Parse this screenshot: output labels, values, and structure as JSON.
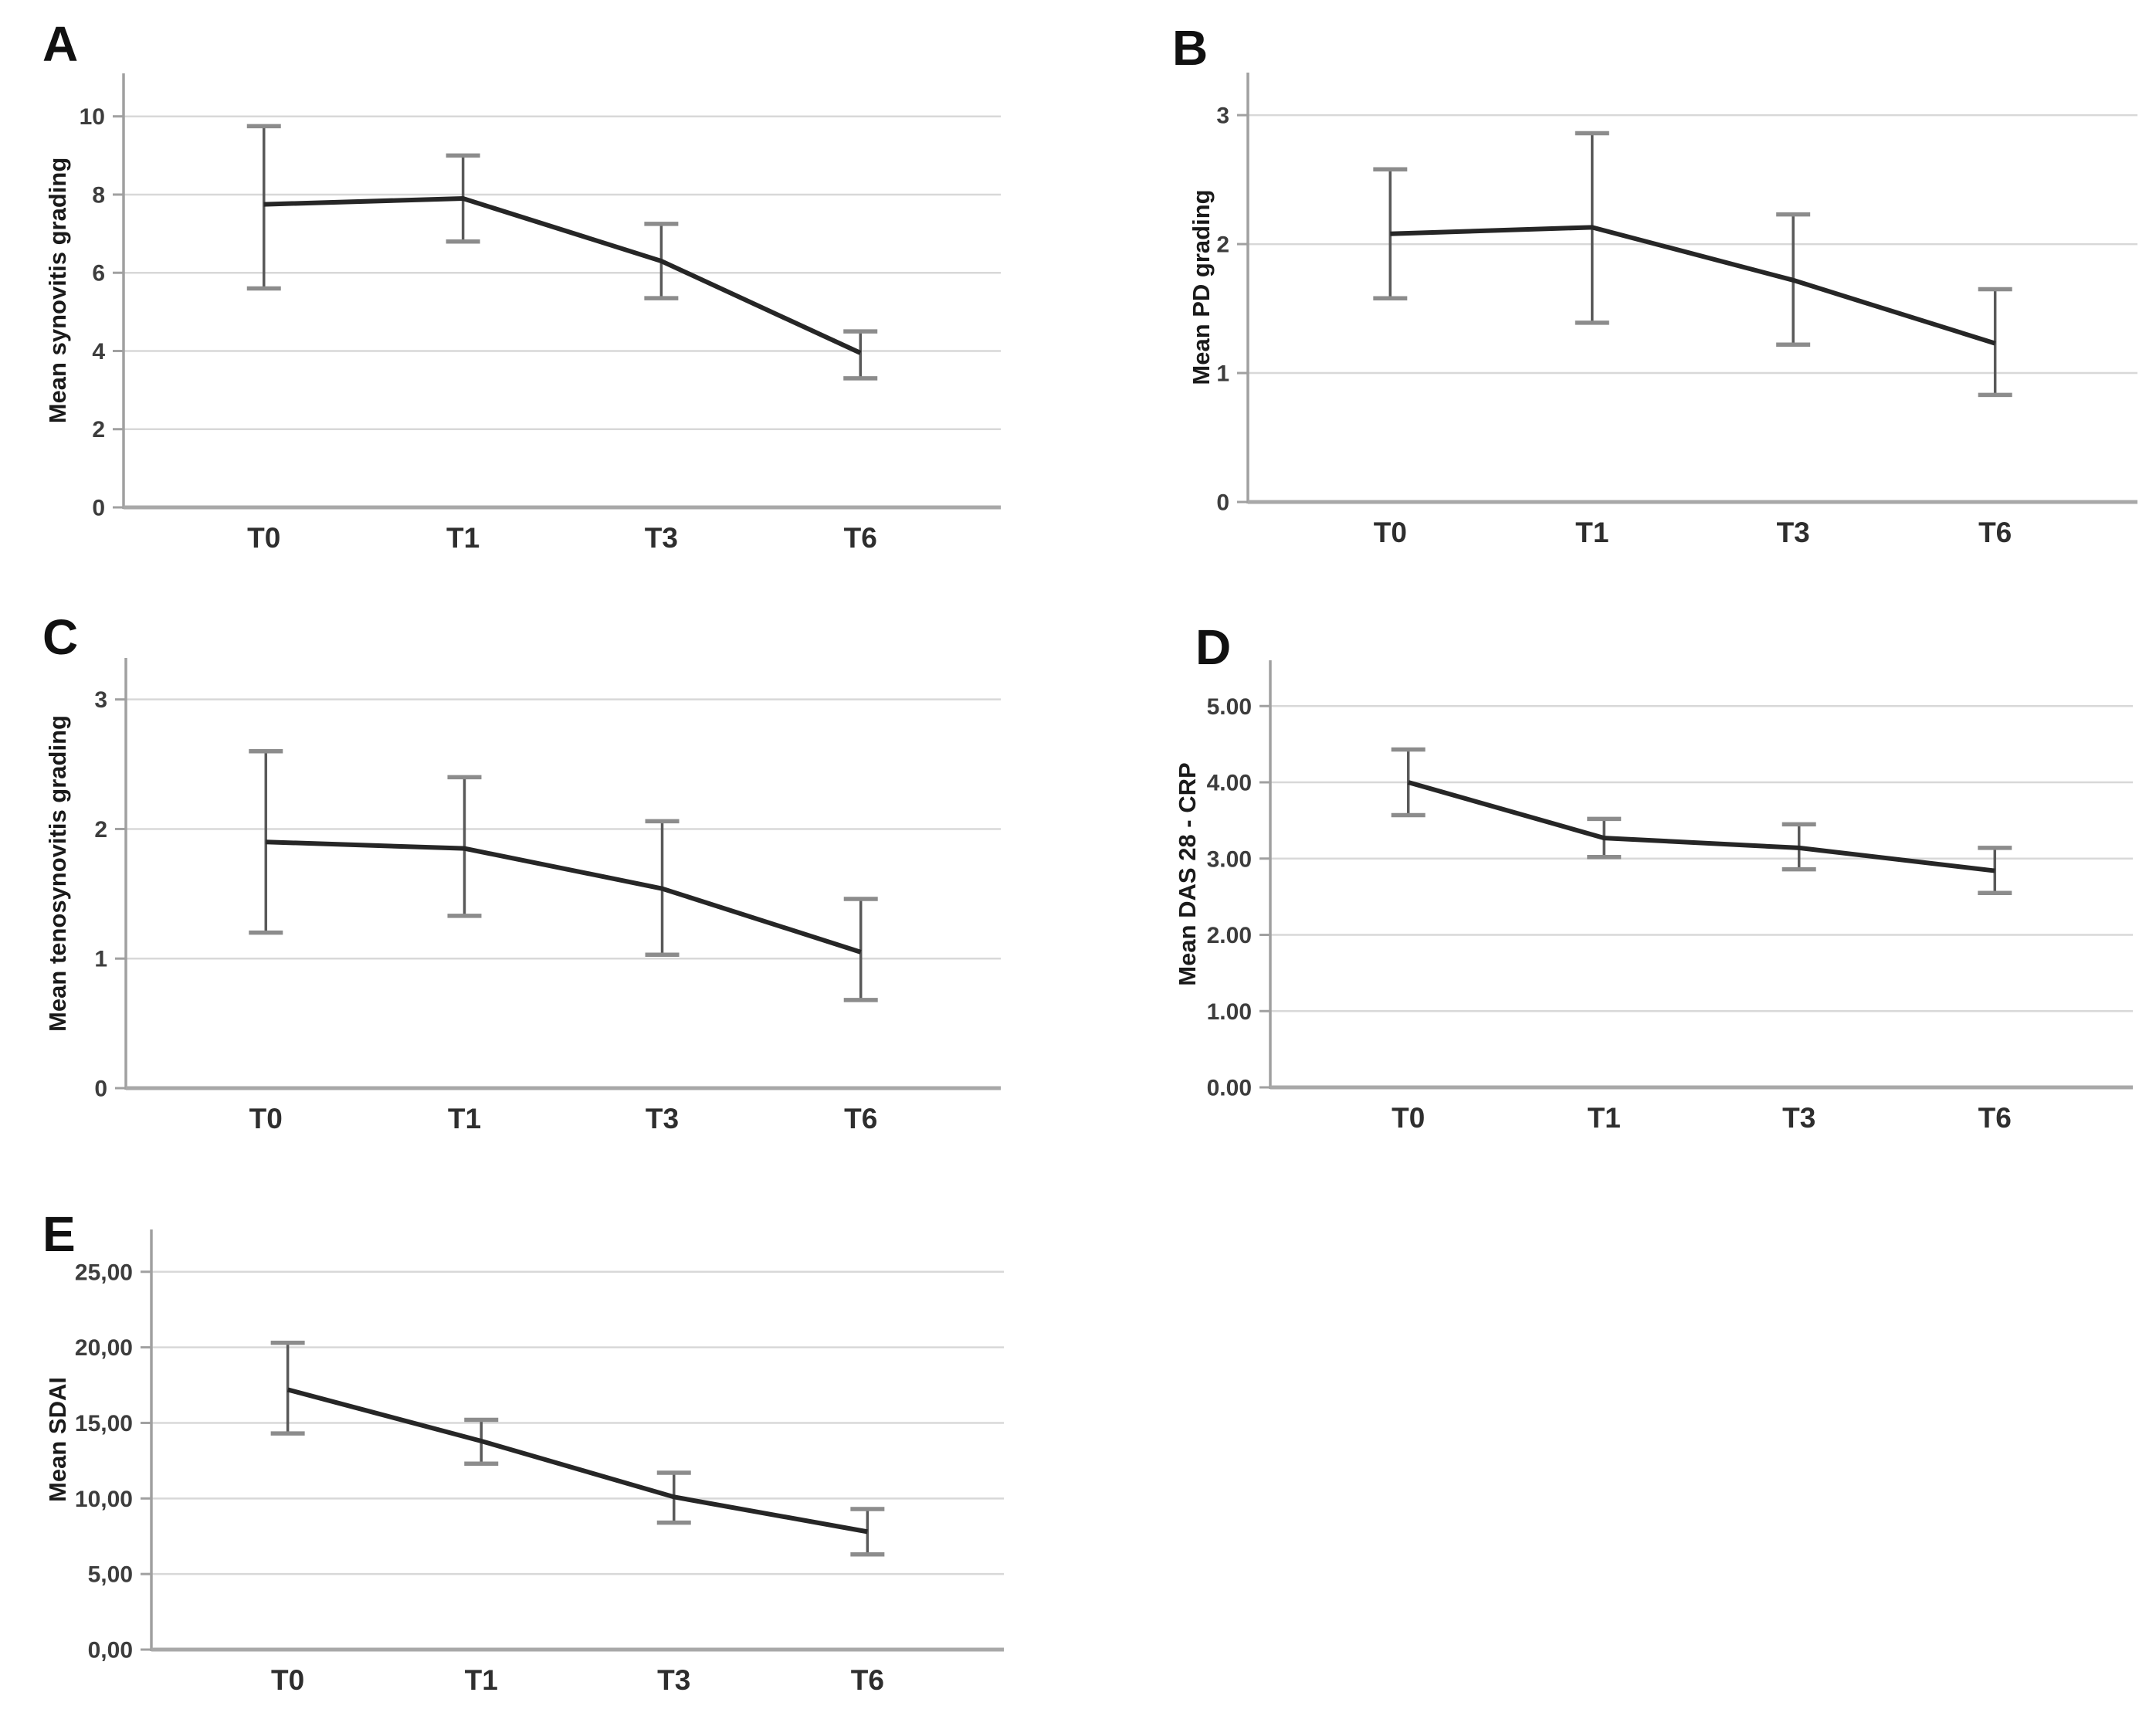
{
  "chart_data": [
    {
      "panel_label": "A",
      "type": "line",
      "title": "",
      "xlabel": "",
      "ylabel": "Mean synovitis grading",
      "categories": [
        "T0",
        "T1",
        "T3",
        "T6"
      ],
      "series": [
        {
          "name": "mean",
          "values": [
            7.75,
            7.9,
            6.3,
            3.95
          ]
        }
      ],
      "error_low": [
        5.6,
        6.8,
        5.35,
        3.3
      ],
      "error_high": [
        9.75,
        9.0,
        7.25,
        4.5
      ],
      "ylim": [
        0,
        11.1
      ],
      "ytick_values": [
        0,
        2,
        4,
        6,
        8,
        10
      ],
      "ytick_labels": [
        "0",
        "2",
        "4",
        "6",
        "8",
        "10"
      ],
      "grid": true,
      "legend": "none"
    },
    {
      "panel_label": "B",
      "type": "line",
      "title": "",
      "xlabel": "",
      "ylabel": "Mean PD grading",
      "categories": [
        "T0",
        "T1",
        "T3",
        "T6"
      ],
      "series": [
        {
          "name": "mean",
          "values": [
            2.08,
            2.13,
            1.72,
            1.23
          ]
        }
      ],
      "error_low": [
        1.58,
        1.39,
        1.22,
        0.83
      ],
      "error_high": [
        2.58,
        2.86,
        2.23,
        1.65
      ],
      "ylim": [
        0,
        3.33
      ],
      "ytick_values": [
        0,
        1,
        2,
        3
      ],
      "ytick_labels": [
        "0",
        "1",
        "2",
        "3"
      ],
      "grid": true,
      "legend": "none"
    },
    {
      "panel_label": "C",
      "type": "line",
      "title": "",
      "xlabel": "",
      "ylabel": "Mean tenosynovitis grading",
      "categories": [
        "T0",
        "T1",
        "T3",
        "T6"
      ],
      "series": [
        {
          "name": "mean",
          "values": [
            1.9,
            1.85,
            1.54,
            1.05
          ]
        }
      ],
      "error_low": [
        1.2,
        1.33,
        1.03,
        0.68
      ],
      "error_high": [
        2.6,
        2.4,
        2.06,
        1.46
      ],
      "ylim": [
        0,
        3.32
      ],
      "ytick_values": [
        0,
        1,
        2,
        3
      ],
      "ytick_labels": [
        "0",
        "1",
        "2",
        "3"
      ],
      "grid": true,
      "legend": "none"
    },
    {
      "panel_label": "D",
      "type": "line",
      "title": "",
      "xlabel": "",
      "ylabel": "Mean DAS 28 - CRP",
      "categories": [
        "T0",
        "T1",
        "T3",
        "T6"
      ],
      "series": [
        {
          "name": "mean",
          "values": [
            4.0,
            3.27,
            3.14,
            2.84
          ]
        }
      ],
      "error_low": [
        3.57,
        3.02,
        2.86,
        2.55
      ],
      "error_high": [
        4.43,
        3.52,
        3.45,
        3.14
      ],
      "ylim": [
        0,
        5.6
      ],
      "ytick_values": [
        0,
        1,
        2,
        3,
        4,
        5
      ],
      "ytick_labels": [
        "0.00",
        "1.00",
        "2.00",
        "3.00",
        "4.00",
        "5.00"
      ],
      "grid": true,
      "legend": "none"
    },
    {
      "panel_label": "E",
      "type": "line",
      "title": "",
      "xlabel": "",
      "ylabel": "Mean SDAI",
      "categories": [
        "T0",
        "T1",
        "T3",
        "T6"
      ],
      "series": [
        {
          "name": "mean",
          "values": [
            17.2,
            13.8,
            10.1,
            7.8
          ]
        }
      ],
      "error_low": [
        14.3,
        12.3,
        8.4,
        6.3
      ],
      "error_high": [
        20.3,
        15.2,
        11.7,
        9.3
      ],
      "ylim": [
        0,
        27.8
      ],
      "ytick_values": [
        0,
        5,
        10,
        15,
        20,
        25
      ],
      "ytick_labels": [
        "0,00",
        "5,00",
        "10,00",
        "15,00",
        "20,00",
        "25,00"
      ],
      "grid": true,
      "legend": "none"
    }
  ],
  "colors": {
    "mean_line": "#262626",
    "error_stem": "#595959",
    "error_cap": "#8c8c8c",
    "gridline": "#d8d8d8",
    "y_axis": "#a0a0a0",
    "x_axis": "#a8a8a8",
    "tick_text": "#3d3d3d",
    "axis_title_text": "#1a1a1a",
    "panel_letter_text": "#111111",
    "background": "#ffffff"
  }
}
